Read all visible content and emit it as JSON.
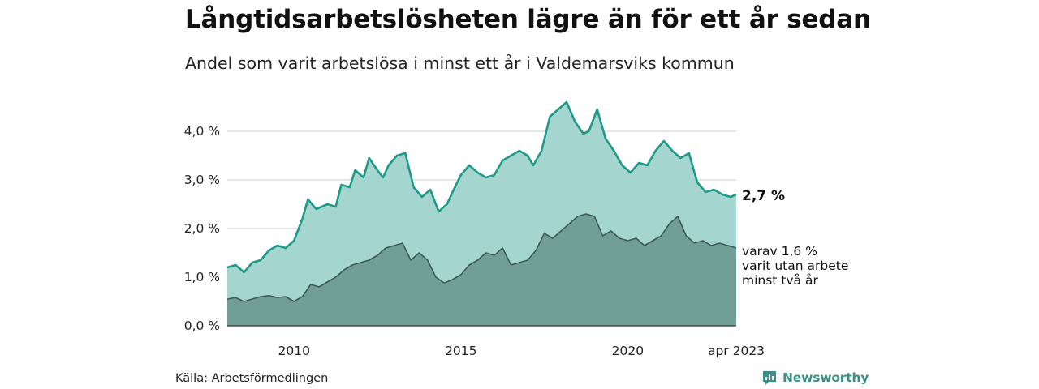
{
  "title": "Långtidsarbetslösheten lägre än för ett år sedan",
  "subtitle": "Andel som varit arbetslösa i minst ett år i Valdemarsviks kommun",
  "source": "Källa: Arbetsförmedlingen",
  "brand": {
    "name": "Newsworthy",
    "icon": "newsworthy-logo-icon"
  },
  "colors": {
    "upper_line": "#1f9a88",
    "upper_fill": "#a5d5cf",
    "lower_line": "#3d5a55",
    "lower_fill": "#719e97",
    "grid": "#dddddd"
  },
  "chart_data": {
    "type": "area",
    "title": "Långtidsarbetslösheten lägre än för ett år sedan",
    "subtitle": "Andel som varit arbetslösa i minst ett år i Valdemarsviks kommun",
    "x_range": [
      "2008-01",
      "2023-04"
    ],
    "ylim": [
      0,
      4.7
    ],
    "yticks": [
      0,
      1,
      2,
      3,
      4
    ],
    "ytick_labels": [
      "0,0 %",
      "1,0 %",
      "2,0 %",
      "3,0 %",
      "4,0 %"
    ],
    "xtick_labels": [
      {
        "date": "2010-01",
        "label": "2010"
      },
      {
        "date": "2015-01",
        "label": "2015"
      },
      {
        "date": "2020-01",
        "label": "2020"
      },
      {
        "date": "2023-04",
        "label": "apr 2023"
      }
    ],
    "grid": true,
    "series": [
      {
        "name": "",
        "end_label": "2,7 %",
        "points": [
          [
            "2008-01",
            1.2
          ],
          [
            "2008-04",
            1.25
          ],
          [
            "2008-07",
            1.1
          ],
          [
            "2008-10",
            1.3
          ],
          [
            "2009-01",
            1.35
          ],
          [
            "2009-04",
            1.55
          ],
          [
            "2009-07",
            1.65
          ],
          [
            "2009-10",
            1.6
          ],
          [
            "2010-01",
            1.75
          ],
          [
            "2010-04",
            2.2
          ],
          [
            "2010-06",
            2.6
          ],
          [
            "2010-09",
            2.4
          ],
          [
            "2011-01",
            2.5
          ],
          [
            "2011-04",
            2.45
          ],
          [
            "2011-06",
            2.9
          ],
          [
            "2011-09",
            2.85
          ],
          [
            "2011-11",
            3.2
          ],
          [
            "2012-02",
            3.05
          ],
          [
            "2012-04",
            3.45
          ],
          [
            "2012-07",
            3.2
          ],
          [
            "2012-09",
            3.05
          ],
          [
            "2012-11",
            3.3
          ],
          [
            "2013-02",
            3.5
          ],
          [
            "2013-05",
            3.55
          ],
          [
            "2013-08",
            2.85
          ],
          [
            "2013-11",
            2.65
          ],
          [
            "2014-02",
            2.8
          ],
          [
            "2014-05",
            2.35
          ],
          [
            "2014-08",
            2.5
          ],
          [
            "2014-10",
            2.75
          ],
          [
            "2015-01",
            3.1
          ],
          [
            "2015-04",
            3.3
          ],
          [
            "2015-07",
            3.15
          ],
          [
            "2015-10",
            3.05
          ],
          [
            "2016-01",
            3.1
          ],
          [
            "2016-04",
            3.4
          ],
          [
            "2016-07",
            3.5
          ],
          [
            "2016-10",
            3.6
          ],
          [
            "2017-01",
            3.5
          ],
          [
            "2017-03",
            3.3
          ],
          [
            "2017-06",
            3.6
          ],
          [
            "2017-09",
            4.3
          ],
          [
            "2017-12",
            4.45
          ],
          [
            "2018-03",
            4.6
          ],
          [
            "2018-06",
            4.2
          ],
          [
            "2018-09",
            3.95
          ],
          [
            "2018-11",
            4.0
          ],
          [
            "2019-02",
            4.45
          ],
          [
            "2019-05",
            3.85
          ],
          [
            "2019-08",
            3.6
          ],
          [
            "2019-11",
            3.3
          ],
          [
            "2020-02",
            3.15
          ],
          [
            "2020-05",
            3.35
          ],
          [
            "2020-08",
            3.3
          ],
          [
            "2020-11",
            3.6
          ],
          [
            "2021-02",
            3.8
          ],
          [
            "2021-05",
            3.6
          ],
          [
            "2021-08",
            3.45
          ],
          [
            "2021-11",
            3.55
          ],
          [
            "2022-02",
            2.95
          ],
          [
            "2022-05",
            2.75
          ],
          [
            "2022-08",
            2.8
          ],
          [
            "2022-11",
            2.7
          ],
          [
            "2023-02",
            2.65
          ],
          [
            "2023-04",
            2.7
          ]
        ]
      },
      {
        "name": "",
        "note": [
          "varav 1,6 %",
          "varit utan arbete",
          "minst två år"
        ],
        "points": [
          [
            "2008-01",
            0.55
          ],
          [
            "2008-04",
            0.58
          ],
          [
            "2008-07",
            0.5
          ],
          [
            "2008-10",
            0.55
          ],
          [
            "2009-01",
            0.6
          ],
          [
            "2009-04",
            0.62
          ],
          [
            "2009-07",
            0.58
          ],
          [
            "2009-10",
            0.6
          ],
          [
            "2010-01",
            0.5
          ],
          [
            "2010-04",
            0.6
          ],
          [
            "2010-07",
            0.85
          ],
          [
            "2010-10",
            0.8
          ],
          [
            "2011-01",
            0.9
          ],
          [
            "2011-04",
            1.0
          ],
          [
            "2011-07",
            1.15
          ],
          [
            "2011-10",
            1.25
          ],
          [
            "2012-01",
            1.3
          ],
          [
            "2012-04",
            1.35
          ],
          [
            "2012-07",
            1.45
          ],
          [
            "2012-10",
            1.6
          ],
          [
            "2013-01",
            1.65
          ],
          [
            "2013-04",
            1.7
          ],
          [
            "2013-07",
            1.35
          ],
          [
            "2013-10",
            1.5
          ],
          [
            "2014-01",
            1.35
          ],
          [
            "2014-04",
            1.0
          ],
          [
            "2014-07",
            0.88
          ],
          [
            "2014-10",
            0.95
          ],
          [
            "2015-01",
            1.05
          ],
          [
            "2015-04",
            1.25
          ],
          [
            "2015-07",
            1.35
          ],
          [
            "2015-10",
            1.5
          ],
          [
            "2016-01",
            1.45
          ],
          [
            "2016-04",
            1.6
          ],
          [
            "2016-07",
            1.25
          ],
          [
            "2016-10",
            1.3
          ],
          [
            "2017-01",
            1.35
          ],
          [
            "2017-04",
            1.55
          ],
          [
            "2017-07",
            1.9
          ],
          [
            "2017-10",
            1.8
          ],
          [
            "2018-01",
            1.95
          ],
          [
            "2018-04",
            2.1
          ],
          [
            "2018-07",
            2.25
          ],
          [
            "2018-10",
            2.3
          ],
          [
            "2019-01",
            2.25
          ],
          [
            "2019-04",
            1.85
          ],
          [
            "2019-07",
            1.95
          ],
          [
            "2019-10",
            1.8
          ],
          [
            "2020-01",
            1.75
          ],
          [
            "2020-04",
            1.8
          ],
          [
            "2020-07",
            1.65
          ],
          [
            "2020-10",
            1.75
          ],
          [
            "2021-01",
            1.85
          ],
          [
            "2021-04",
            2.1
          ],
          [
            "2021-07",
            2.25
          ],
          [
            "2021-10",
            1.85
          ],
          [
            "2022-01",
            1.7
          ],
          [
            "2022-04",
            1.75
          ],
          [
            "2022-07",
            1.65
          ],
          [
            "2022-10",
            1.7
          ],
          [
            "2023-01",
            1.65
          ],
          [
            "2023-04",
            1.6
          ]
        ]
      }
    ]
  }
}
